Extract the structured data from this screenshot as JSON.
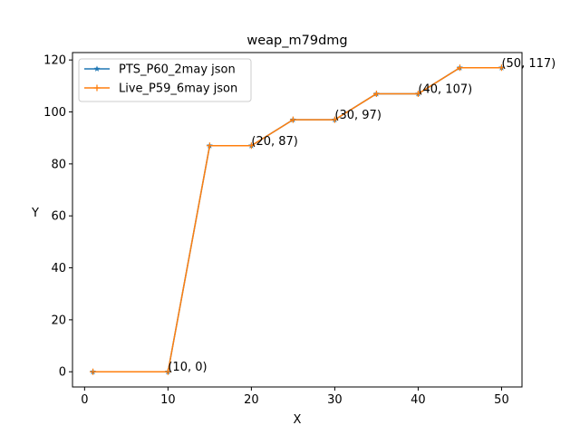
{
  "chart_data": {
    "type": "line",
    "title": "weap_m79dmg",
    "xlabel": "X",
    "ylabel": "Y",
    "xlim": [
      -1.45,
      52.45
    ],
    "ylim": [
      -5.85,
      122.85
    ],
    "xticks": [
      0,
      10,
      20,
      30,
      40,
      50
    ],
    "yticks": [
      0,
      20,
      40,
      60,
      80,
      100,
      120
    ],
    "grid": false,
    "legend_position": "top-left",
    "x": [
      1,
      10,
      15,
      20,
      25,
      30,
      35,
      40,
      45,
      50
    ],
    "series": [
      {
        "name": "PTS_P60_2may json",
        "color": "#1f77b4",
        "marker": "star",
        "values": [
          0,
          0,
          87,
          87,
          97,
          97,
          107,
          107,
          117,
          117
        ]
      },
      {
        "name": "Live_P59_6may json",
        "color": "#ff7f0e",
        "marker": "plus",
        "values": [
          0,
          0,
          87,
          87,
          97,
          97,
          107,
          107,
          117,
          117
        ]
      }
    ],
    "annotations": [
      {
        "text": "(10, 0)",
        "x": 10,
        "y": 0
      },
      {
        "text": "(20, 87)",
        "x": 20,
        "y": 87
      },
      {
        "text": "(30, 97)",
        "x": 30,
        "y": 97
      },
      {
        "text": "(40, 107)",
        "x": 40,
        "y": 107
      },
      {
        "text": "(50, 117)",
        "x": 50,
        "y": 117
      }
    ]
  }
}
